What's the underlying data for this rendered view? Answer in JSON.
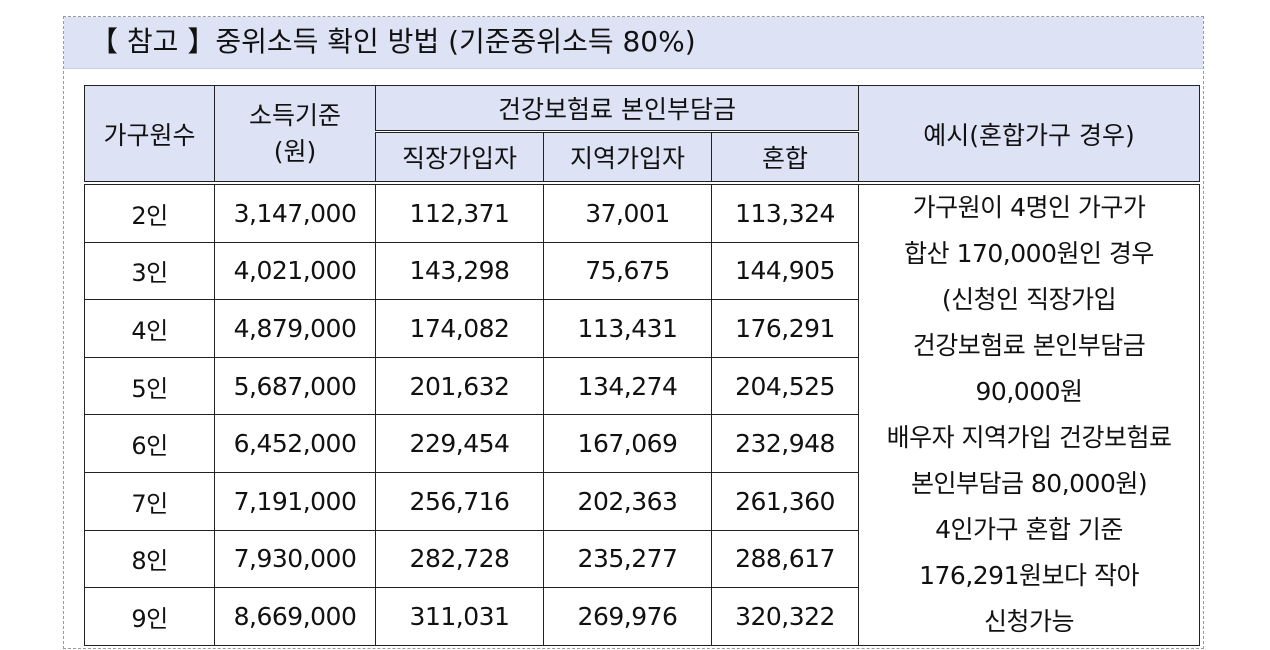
{
  "title": "【 참고 】중위소득 확인 방법 (기준중위소득 80%)",
  "headers": {
    "household_size": "가구원수",
    "income_line1": "소득기준",
    "income_line2": "(원)",
    "insurance_group": "건강보험료 본인부담금",
    "employee": "직장가입자",
    "regional": "지역가입자",
    "mixed": "혼합",
    "example": "예시(혼합가구 경우)"
  },
  "rows": [
    {
      "size": "2인",
      "income": "3,147,000",
      "employee": "112,371",
      "regional": "37,001",
      "mixed": "113,324"
    },
    {
      "size": "3인",
      "income": "4,021,000",
      "employee": "143,298",
      "regional": "75,675",
      "mixed": "144,905"
    },
    {
      "size": "4인",
      "income": "4,879,000",
      "employee": "174,082",
      "regional": "113,431",
      "mixed": "176,291"
    },
    {
      "size": "5인",
      "income": "5,687,000",
      "employee": "201,632",
      "regional": "134,274",
      "mixed": "204,525"
    },
    {
      "size": "6인",
      "income": "6,452,000",
      "employee": "229,454",
      "regional": "167,069",
      "mixed": "232,948"
    },
    {
      "size": "7인",
      "income": "7,191,000",
      "employee": "256,716",
      "regional": "202,363",
      "mixed": "261,360"
    },
    {
      "size": "8인",
      "income": "7,930,000",
      "employee": "282,728",
      "regional": "235,277",
      "mixed": "288,617"
    },
    {
      "size": "9인",
      "income": "8,669,000",
      "employee": "311,031",
      "regional": "269,976",
      "mixed": "320,322"
    }
  ],
  "example_lines": [
    "가구원이 4명인 가구가",
    "합산 170,000원인 경우",
    "(신청인 직장가입",
    "건강보험료 본인부담금",
    "90,000원",
    "배우자 지역가입 건강보험료",
    "본인부담금 80,000원)",
    "4인가구 혼합 기준",
    "176,291원보다 작아",
    "신청가능"
  ]
}
